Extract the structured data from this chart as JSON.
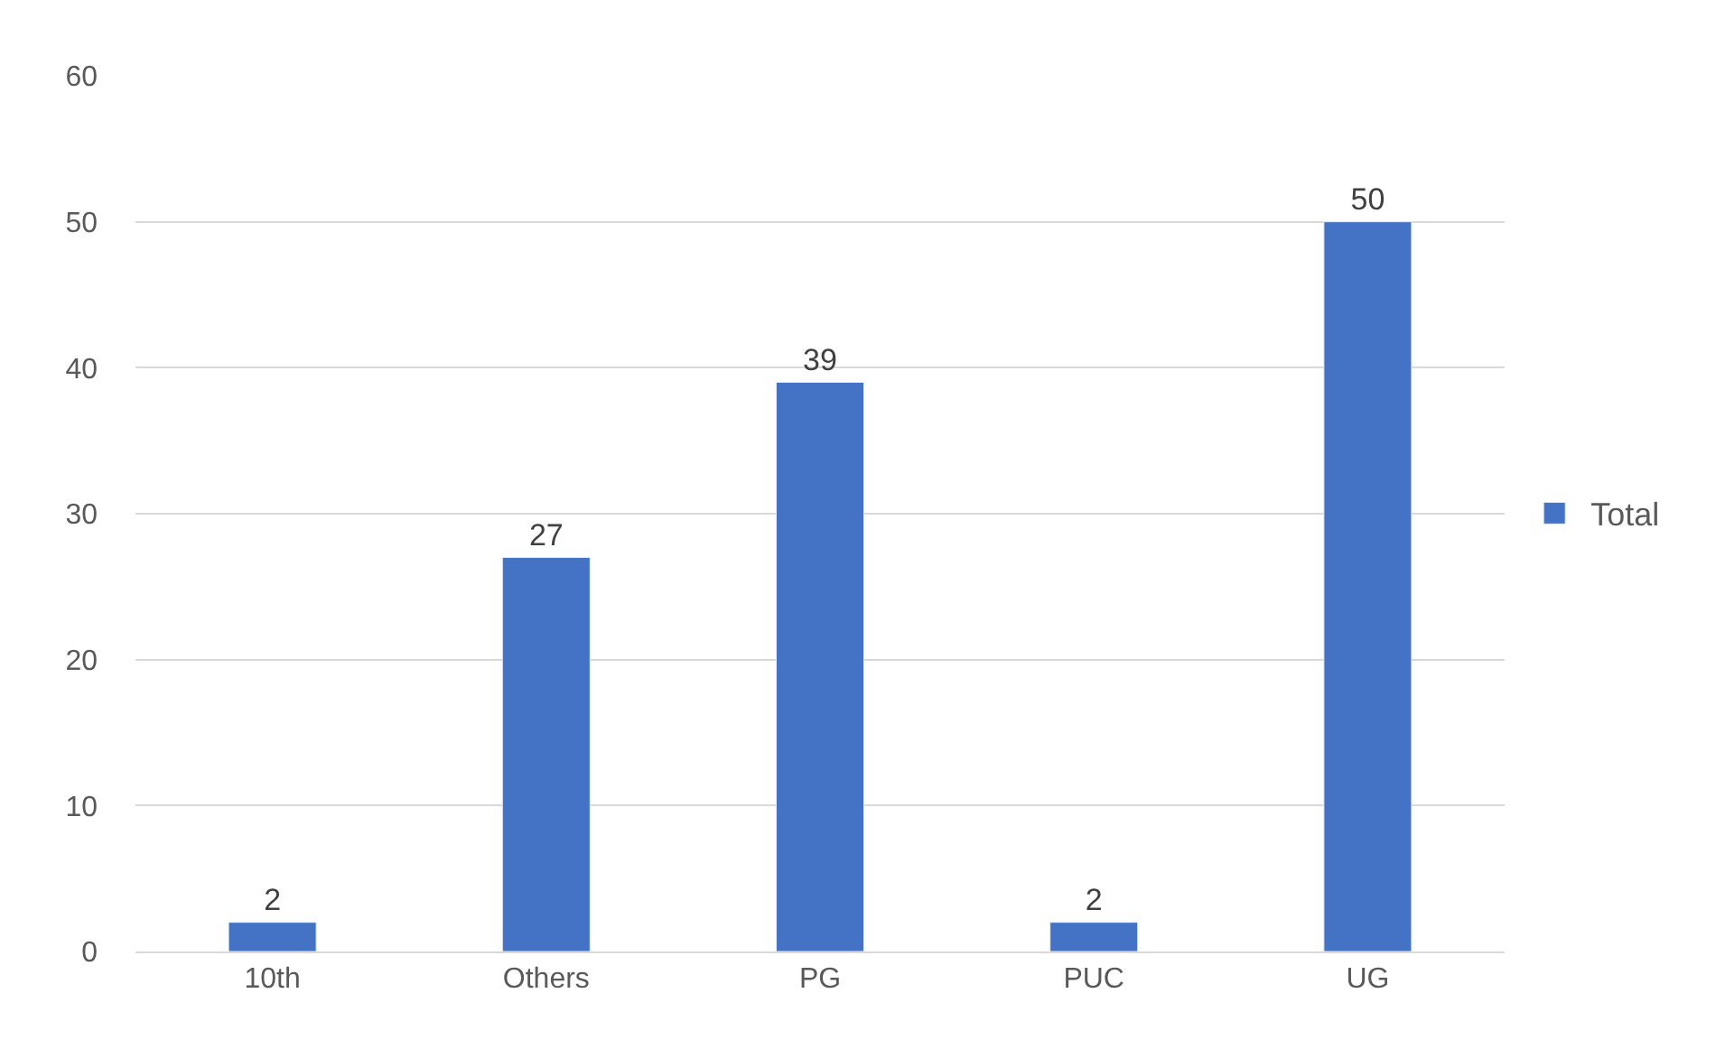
{
  "chart_data": {
    "type": "bar",
    "categories": [
      "10th",
      "Others",
      "PG",
      "PUC",
      "UG"
    ],
    "series": [
      {
        "name": "Total",
        "color": "#4472c4",
        "values": [
          2,
          27,
          39,
          2,
          50
        ]
      }
    ],
    "ylim": [
      0,
      60
    ],
    "yticks": [
      0,
      10,
      20,
      30,
      40,
      50,
      60
    ],
    "grid": "y",
    "legend": "right",
    "data_labels": true
  }
}
